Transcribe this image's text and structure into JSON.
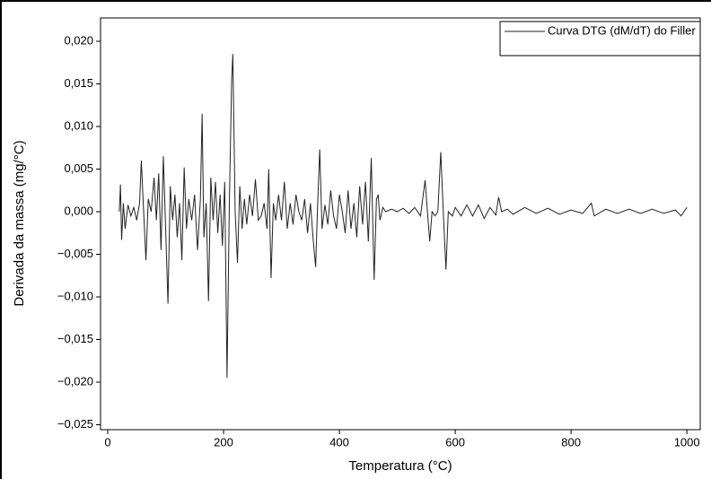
{
  "chart_data": {
    "type": "line",
    "xlabel": "Temperatura (°C)",
    "ylabel": "Derivada da massa (mg/°C)",
    "xlim": [
      -12.4,
      1023
    ],
    "ylim": [
      -0.02558,
      0.02274
    ],
    "xticks": [
      0,
      200,
      400,
      600,
      800,
      1000
    ],
    "yticks": [
      {
        "value": 0.02,
        "label": "0,020"
      },
      {
        "value": 0.015,
        "label": "0,015"
      },
      {
        "value": 0.01,
        "label": "0,010"
      },
      {
        "value": 0.005,
        "label": "0,005"
      },
      {
        "value": 0,
        "label": "0,000"
      },
      {
        "value": -0.005,
        "label": "−0,005"
      },
      {
        "value": -0.01,
        "label": "−0,010"
      },
      {
        "value": -0.015,
        "label": "−0,015"
      },
      {
        "value": -0.02,
        "label": "−0,020"
      },
      {
        "value": -0.025,
        "label": "−0,025"
      }
    ],
    "grid": false,
    "legend": "top-right",
    "x": [
      20,
      22,
      24,
      27,
      30,
      35,
      40,
      45,
      50,
      55,
      58,
      62,
      66,
      70,
      75,
      80,
      84,
      88,
      92,
      96,
      100,
      104,
      108,
      112,
      116,
      120,
      124,
      128,
      132,
      136,
      140,
      145,
      150,
      155,
      160,
      163,
      166,
      170,
      174,
      178,
      182,
      186,
      190,
      194,
      198,
      202,
      206,
      210,
      214,
      216,
      220,
      224,
      228,
      232,
      236,
      240,
      245,
      250,
      255,
      260,
      265,
      270,
      275,
      278,
      282,
      286,
      290,
      295,
      300,
      305,
      310,
      315,
      320,
      325,
      330,
      335,
      340,
      345,
      350,
      355,
      359,
      362,
      366,
      370,
      375,
      380,
      385,
      390,
      395,
      400,
      405,
      410,
      415,
      420,
      425,
      430,
      435,
      440,
      445,
      450,
      455,
      460,
      464,
      467,
      470,
      475,
      480,
      490,
      500,
      510,
      520,
      530,
      540,
      548,
      552,
      556,
      560,
      565,
      570,
      575,
      580,
      584,
      588,
      595,
      600,
      610,
      620,
      630,
      640,
      650,
      660,
      670,
      675,
      680,
      690,
      700,
      720,
      740,
      760,
      780,
      800,
      820,
      835,
      840,
      860,
      880,
      900,
      920,
      940,
      960,
      980,
      990,
      1000
    ],
    "series": [
      {
        "name": "Curva DTG (dM/dT) do Filler",
        "color": "#222222",
        "values": [
          0,
          0.0032,
          -0.0033,
          0.001,
          -0.002,
          0.0008,
          -0.0005,
          0.0005,
          -0.001,
          0.001,
          0.006,
          0,
          -0.0057,
          0.0015,
          0,
          0.004,
          -0.001,
          0.0045,
          -0.0045,
          0.0065,
          -0.002,
          -0.0108,
          0.003,
          -0.001,
          0.002,
          -0.003,
          0.001,
          -0.0057,
          0.0052,
          -0.002,
          0.0015,
          -0.001,
          0.002,
          -0.0045,
          0.0015,
          0.0115,
          -0.003,
          0.001,
          -0.0105,
          0.004,
          -0.001,
          0.0035,
          -0.0025,
          0.002,
          -0.004,
          0.0035,
          -0.0195,
          0.001,
          0.0155,
          0.0185,
          0,
          -0.006,
          0.003,
          -0.002,
          0.0015,
          -0.0015,
          0.002,
          -0.0005,
          0.0038,
          -0.001,
          -0.0005,
          0.001,
          -0.002,
          0.005,
          -0.0078,
          0.001,
          -0.001,
          0.002,
          -0.001,
          0.0035,
          -0.002,
          0.001,
          -0.0015,
          0.002,
          0,
          -0.001,
          0.0015,
          -0.0025,
          0.001,
          -0.0035,
          -0.0065,
          0,
          0.0073,
          -0.002,
          0.0008,
          -0.0015,
          0.0025,
          -0.0005,
          -0.002,
          0.002,
          0,
          -0.0025,
          0.0025,
          -0.002,
          0.001,
          -0.003,
          0.003,
          -0.0015,
          0.0035,
          -0.0035,
          0.0063,
          -0.008,
          0.0015,
          0.002,
          -0.001,
          0.0005,
          0,
          0.0003,
          0,
          0.0004,
          -0.0002,
          0.0005,
          -0.0005,
          0.0037,
          0,
          -0.0035,
          0,
          -0.0005,
          0,
          0.007,
          -0.001,
          -0.0068,
          0,
          -0.0005,
          0.0005,
          -0.0005,
          0.0008,
          -0.0005,
          0.0008,
          -0.0008,
          0.0005,
          -0.0004,
          0.0017,
          0,
          0.0003,
          -0.0003,
          0.0005,
          -0.0002,
          0.0004,
          -0.0003,
          0.0002,
          -0.0002,
          0.001,
          -0.0005,
          0.0003,
          -0.0002,
          0.0003,
          -0.0002,
          0.0003,
          -0.0002,
          0.0002,
          -0.0005,
          0.0005
        ]
      }
    ]
  }
}
